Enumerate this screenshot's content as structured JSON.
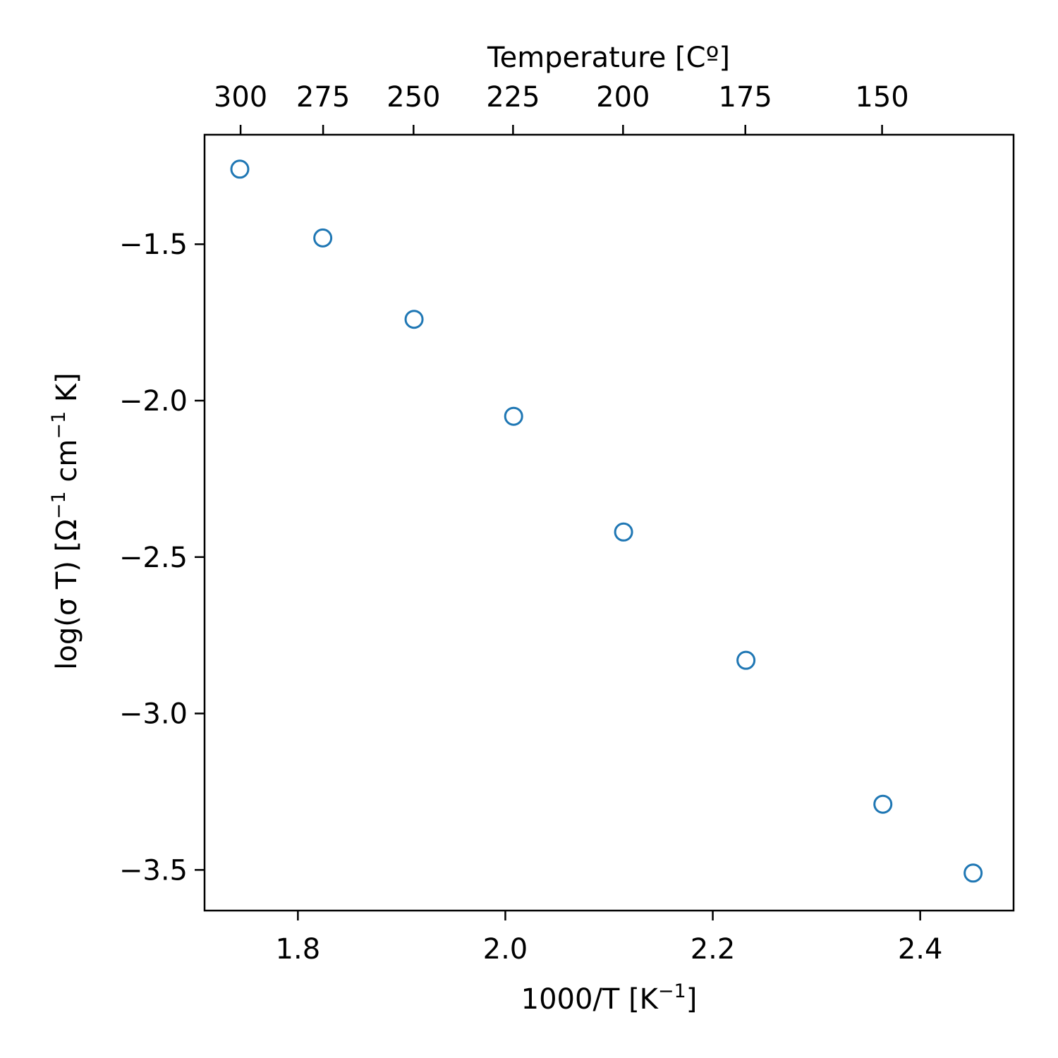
{
  "chart_data": {
    "type": "scatter",
    "title": "",
    "xlabel": {
      "base": "1000/T [K",
      "sup": "−1",
      "tail": "]"
    },
    "ylabel": {
      "part1": "log(σ T)  [Ω",
      "sup1": "−1",
      "part2": " cm",
      "sup2": "−1",
      "part3": " K]"
    },
    "top_xlabel": "Temperature [Cº]",
    "xlim": [
      1.71,
      2.49
    ],
    "ylim": [
      -3.63,
      -1.15
    ],
    "x_ticks": [
      1.8,
      2.0,
      2.2,
      2.4
    ],
    "x_tick_labels": [
      "1.8",
      "2.0",
      "2.2",
      "2.4"
    ],
    "y_ticks": [
      -1.5,
      -2.0,
      -2.5,
      -3.0,
      -3.5
    ],
    "y_tick_labels": [
      "−1.5",
      "−2.0",
      "−2.5",
      "−3.0",
      "−3.5"
    ],
    "top_ticks_celsius": [
      300,
      275,
      250,
      225,
      200,
      175,
      150
    ],
    "top_tick_labels": [
      "300",
      "275",
      "250",
      "225",
      "200",
      "175",
      "150"
    ],
    "marker_color": "#1f77b4",
    "marker_style": "open-circle",
    "grid": false,
    "points": [
      {
        "x": 1.744,
        "y": -1.26
      },
      {
        "x": 1.824,
        "y": -1.48
      },
      {
        "x": 1.912,
        "y": -1.74
      },
      {
        "x": 2.008,
        "y": -2.05
      },
      {
        "x": 2.114,
        "y": -2.42
      },
      {
        "x": 2.232,
        "y": -2.83
      },
      {
        "x": 2.364,
        "y": -3.29
      },
      {
        "x": 2.451,
        "y": -3.51
      }
    ]
  }
}
